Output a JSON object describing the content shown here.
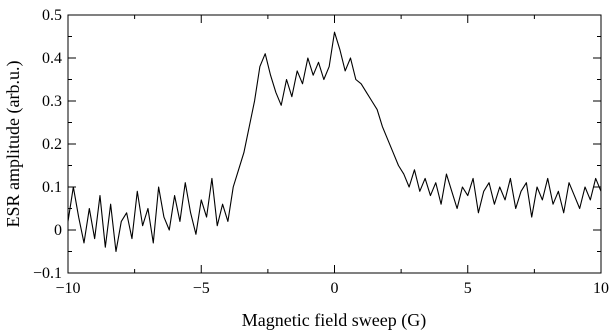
{
  "chart_data": {
    "type": "line",
    "title": "",
    "xlabel": "Magnetic field sweep (G)",
    "ylabel": "ESR amplitude (arb.u.)",
    "xlim": [
      -10,
      10
    ],
    "ylim": [
      -0.1,
      0.5
    ],
    "grid": false,
    "legend": "none",
    "xticks": [
      -10,
      -5,
      0,
      5,
      10
    ],
    "xtick_labels": [
      "−10",
      "−5",
      "0",
      "5",
      "10"
    ],
    "yticks": [
      -0.1,
      0,
      0.1,
      0.2,
      0.3,
      0.4,
      0.5
    ],
    "ytick_labels": [
      "−0.1",
      "0",
      "0.1",
      "0.2",
      "0.3",
      "0.4",
      "0.5"
    ],
    "series": [
      {
        "color": "#000000",
        "x": [
          -10,
          -9.8,
          -9.6,
          -9.4,
          -9.2,
          -9.0,
          -8.8,
          -8.6,
          -8.4,
          -8.2,
          -8.0,
          -7.8,
          -7.6,
          -7.4,
          -7.2,
          -7.0,
          -6.8,
          -6.6,
          -6.4,
          -6.2,
          -6.0,
          -5.8,
          -5.6,
          -5.4,
          -5.2,
          -5.0,
          -4.8,
          -4.6,
          -4.4,
          -4.2,
          -4.0,
          -3.8,
          -3.6,
          -3.4,
          -3.2,
          -3.0,
          -2.8,
          -2.6,
          -2.4,
          -2.2,
          -2.0,
          -1.8,
          -1.6,
          -1.4,
          -1.2,
          -1.0,
          -0.8,
          -0.6,
          -0.4,
          -0.2,
          0.0,
          0.2,
          0.4,
          0.6,
          0.8,
          1.0,
          1.2,
          1.4,
          1.6,
          1.8,
          2.0,
          2.2,
          2.4,
          2.6,
          2.8,
          3.0,
          3.2,
          3.4,
          3.6,
          3.8,
          4.0,
          4.2,
          4.4,
          4.6,
          4.8,
          5.0,
          5.2,
          5.4,
          5.6,
          5.8,
          6.0,
          6.2,
          6.4,
          6.6,
          6.8,
          7.0,
          7.2,
          7.4,
          7.6,
          7.8,
          8.0,
          8.2,
          8.4,
          8.6,
          8.8,
          9.0,
          9.2,
          9.4,
          9.6,
          9.8,
          10.0
        ],
        "y": [
          0.02,
          0.1,
          0.03,
          -0.03,
          0.05,
          -0.02,
          0.08,
          -0.04,
          0.06,
          -0.05,
          0.02,
          0.04,
          -0.02,
          0.09,
          0.01,
          0.05,
          -0.03,
          0.1,
          0.03,
          0.0,
          0.08,
          0.02,
          0.11,
          0.04,
          -0.01,
          0.07,
          0.03,
          0.12,
          0.01,
          0.06,
          0.02,
          0.1,
          0.14,
          0.18,
          0.24,
          0.3,
          0.38,
          0.41,
          0.36,
          0.32,
          0.29,
          0.35,
          0.31,
          0.37,
          0.34,
          0.4,
          0.36,
          0.39,
          0.35,
          0.38,
          0.46,
          0.42,
          0.37,
          0.4,
          0.35,
          0.34,
          0.32,
          0.3,
          0.28,
          0.24,
          0.21,
          0.18,
          0.15,
          0.13,
          0.1,
          0.14,
          0.09,
          0.12,
          0.08,
          0.11,
          0.06,
          0.13,
          0.09,
          0.05,
          0.1,
          0.08,
          0.12,
          0.04,
          0.09,
          0.11,
          0.06,
          0.1,
          0.07,
          0.12,
          0.05,
          0.09,
          0.11,
          0.03,
          0.1,
          0.07,
          0.12,
          0.06,
          0.09,
          0.04,
          0.11,
          0.08,
          0.05,
          0.1,
          0.07,
          0.12,
          0.09
        ]
      }
    ]
  }
}
